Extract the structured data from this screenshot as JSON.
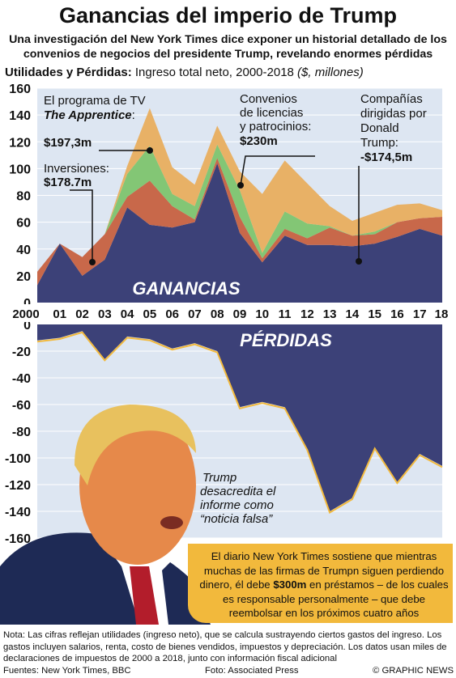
{
  "title": "Ganancias del imperio de Trump",
  "subtitle": "Una investigación del New York Times dice exponer un historial detallado de los convenios de negocios del presidente Trump, revelando enormes pérdidas",
  "panel_header": {
    "label": "Utilidades y Pérdidas:",
    "desc": "Ingreso total neto, 2000-2018",
    "units": "($, millones)"
  },
  "colors": {
    "bg": "#dde6f2",
    "navy": "#3c4178",
    "rust": "#c8684a",
    "green": "#83c675",
    "tan": "#e8b166",
    "accent": "#f2b93c"
  },
  "chart_data": [
    {
      "type": "area",
      "stacked": true,
      "label": "GANANCIAS",
      "x": [
        "2000",
        "01",
        "02",
        "03",
        "04",
        "05",
        "06",
        "07",
        "08",
        "09",
        "10",
        "11",
        "12",
        "13",
        "14",
        "15",
        "16",
        "17",
        "18"
      ],
      "ylim": [
        0,
        160
      ],
      "yticks": [
        0,
        20,
        40,
        60,
        80,
        100,
        120,
        140,
        160
      ],
      "series": [
        {
          "values": [
            13,
            44,
            20,
            32,
            71,
            58,
            56,
            60,
            104,
            52,
            30,
            50,
            43,
            43,
            42,
            44,
            49,
            55,
            50
          ]
        },
        {
          "values": [
            10,
            0,
            14,
            19,
            8,
            33,
            16,
            2,
            4,
            12,
            3,
            5,
            5,
            13,
            8,
            7,
            11,
            8,
            14
          ]
        },
        {
          "values": [
            0,
            0,
            0,
            0,
            17,
            26,
            9,
            10,
            10,
            20,
            4,
            13,
            11,
            1,
            0,
            2,
            0,
            0,
            0
          ]
        },
        {
          "values": [
            0,
            0,
            0,
            0,
            6,
            28,
            20,
            16,
            14,
            14,
            44,
            38,
            30,
            15,
            11,
            14,
            13,
            11,
            5
          ]
        }
      ],
      "annotations": [
        {
          "text": "El programa de TV",
          "bold": "The Apprentice",
          "suffix": ":",
          "value": "$197,3m"
        },
        {
          "text": "Inversiones:",
          "value": "$178.7m"
        },
        {
          "text": "Convenios de licencias y patrocinios:",
          "value": "$230m"
        },
        {
          "text": "Compañías dirigidas por Donald Trump:",
          "value": "-$174,5m"
        }
      ]
    },
    {
      "type": "area",
      "label": "PÉRDIDAS",
      "x": [
        "2000",
        "01",
        "02",
        "03",
        "04",
        "05",
        "06",
        "07",
        "08",
        "09",
        "10",
        "11",
        "12",
        "13",
        "14",
        "15",
        "16",
        "17",
        "18"
      ],
      "ylim": [
        -160,
        0
      ],
      "yticks": [
        0,
        -20,
        -40,
        -60,
        -80,
        -100,
        -120,
        -140,
        -160
      ],
      "series": [
        {
          "values": [
            -12,
            -10,
            -5,
            -26,
            -9,
            -11,
            -18,
            -14,
            -20,
            -62,
            -58,
            -62,
            -93,
            -140,
            -130,
            -92,
            -118,
            -97,
            -106
          ]
        }
      ]
    }
  ],
  "quote": {
    "line1": "Trump",
    "line2": "desacredita el",
    "line3": "informe como",
    "line4": "“noticia falsa”"
  },
  "callout": {
    "pre": "El diario New York Times sostiene que mientras muchas de las firmas de Trumpn siguen perdiendo dinero, él debe ",
    "amount": "$300m",
    "post": " en préstamos – de los cuales es responsable personalmente – que debe reembolsar en los próximos cuatro años"
  },
  "footer": {
    "note": "Nota: Las cifras reflejan utilidades (ingreso neto), que se calcula sustrayendo ciertos gastos del ingreso. Los gastos incluyen salarios, renta, costo de bienes vendidos, impuestos y depreciación. Los datos usan miles de declaraciones de impuestos de 2000 a 2018, junto con información fiscal adicional",
    "sources": "Fuentes: New York Times, BBC",
    "photo": "Foto: Associated Press",
    "credit": "© GRAPHIC NEWS"
  }
}
